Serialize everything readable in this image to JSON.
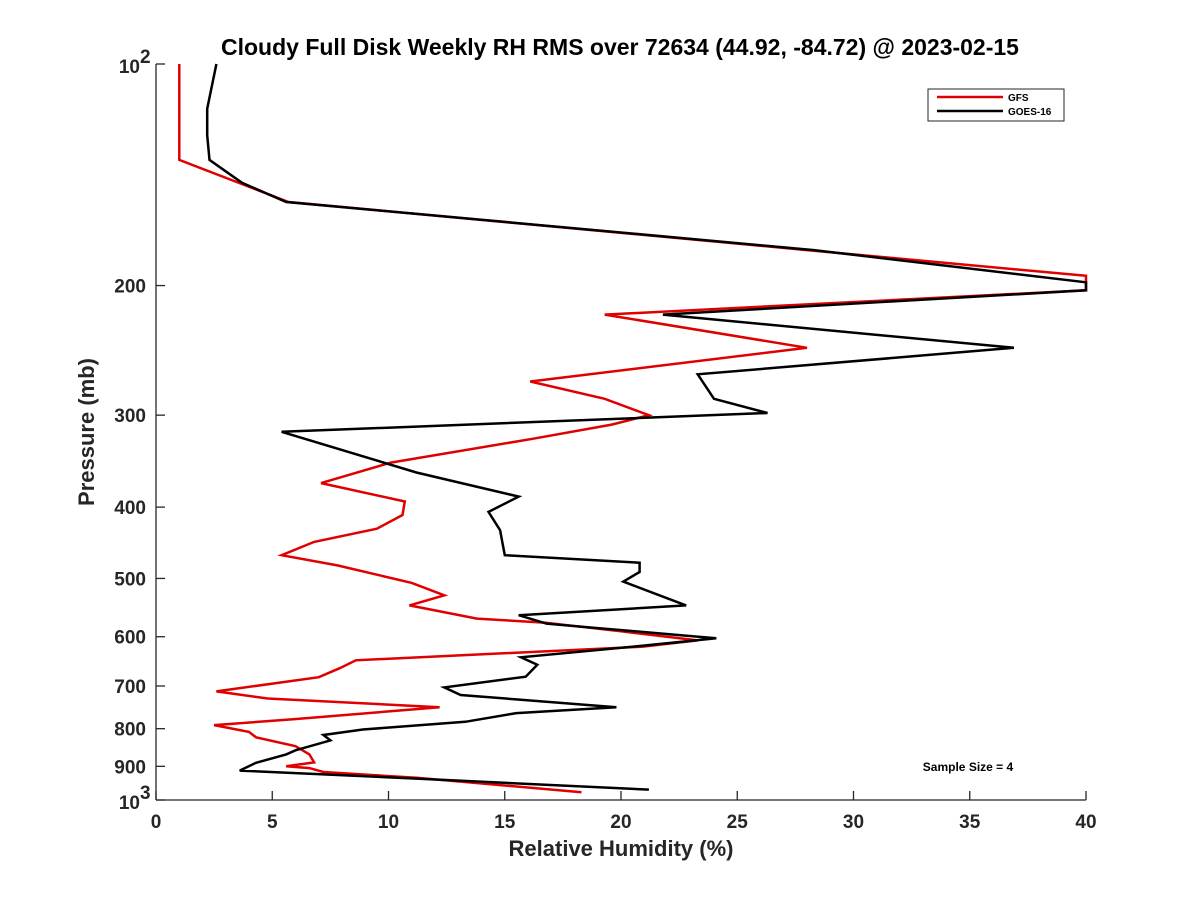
{
  "chart_data": {
    "type": "line",
    "title": "Cloudy Full Disk Weekly RH RMS over 72634 (44.92, -84.72) @ 2023-02-15",
    "xlabel": "Relative Humidity (%)",
    "ylabel": "Pressure (mb)",
    "xlim": [
      0,
      40
    ],
    "ylim": [
      100,
      1000
    ],
    "yscale": "log",
    "y_reversed": true,
    "grid": false,
    "legend_position": "top-right",
    "x_ticks": [
      "0",
      "5",
      "10",
      "15",
      "20",
      "25",
      "30",
      "35",
      "40"
    ],
    "y_ticks": [
      {
        "value": 100,
        "base": "10",
        "exp": "2"
      },
      {
        "value": 200,
        "label": "200"
      },
      {
        "value": 300,
        "label": "300"
      },
      {
        "value": 400,
        "label": "400"
      },
      {
        "value": 500,
        "label": "500"
      },
      {
        "value": 600,
        "label": "600"
      },
      {
        "value": 700,
        "label": "700"
      },
      {
        "value": 800,
        "label": "800"
      },
      {
        "value": 900,
        "label": "900"
      },
      {
        "value": 1000,
        "base": "10",
        "exp": "3"
      }
    ],
    "annotation": "Sample Size = 4",
    "series": [
      {
        "name": "GFS",
        "color": "#e00000",
        "points": [
          [
            1.0,
            100
          ],
          [
            1.0,
            115
          ],
          [
            1.0,
            125
          ],
          [
            1.0,
            135
          ],
          [
            5.7,
            154
          ],
          [
            28.0,
            179
          ],
          [
            40.0,
            194
          ],
          [
            40.0,
            203
          ],
          [
            19.3,
            219
          ],
          [
            28.0,
            243
          ],
          [
            16.1,
            270
          ],
          [
            19.3,
            285
          ],
          [
            21.2,
            300
          ],
          [
            19.6,
            309
          ],
          [
            16.2,
            323
          ],
          [
            10.1,
            348
          ],
          [
            7.1,
            371
          ],
          [
            10.7,
            393
          ],
          [
            10.6,
            410
          ],
          [
            9.5,
            428
          ],
          [
            6.8,
            446
          ],
          [
            5.4,
            465
          ],
          [
            7.8,
            480
          ],
          [
            11.0,
            507
          ],
          [
            12.4,
            527
          ],
          [
            10.9,
            544
          ],
          [
            13.8,
            567
          ],
          [
            16.7,
            574
          ],
          [
            20.0,
            590
          ],
          [
            23.3,
            607
          ],
          [
            20.9,
            619
          ],
          [
            8.6,
            646
          ],
          [
            7.9,
            662
          ],
          [
            7.0,
            681
          ],
          [
            2.6,
            712
          ],
          [
            4.8,
            728
          ],
          [
            12.2,
            748
          ],
          [
            5.9,
            777
          ],
          [
            2.5,
            791
          ],
          [
            4.0,
            808
          ],
          [
            4.3,
            822
          ],
          [
            6.0,
            845
          ],
          [
            6.6,
            867
          ],
          [
            6.8,
            889
          ],
          [
            5.6,
            900
          ],
          [
            6.6,
            905
          ],
          [
            7.2,
            916
          ],
          [
            11.2,
            933
          ],
          [
            18.3,
            976
          ]
        ]
      },
      {
        "name": "GOES-16",
        "color": "#000000",
        "points": [
          [
            2.6,
            100
          ],
          [
            2.2,
            115
          ],
          [
            2.2,
            125
          ],
          [
            2.3,
            135
          ],
          [
            3.7,
            145
          ],
          [
            5.6,
            154
          ],
          [
            28.3,
            179
          ],
          [
            40.0,
            198
          ],
          [
            40.0,
            203
          ],
          [
            21.8,
            219
          ],
          [
            36.9,
            243
          ],
          [
            23.3,
            264
          ],
          [
            24.0,
            285
          ],
          [
            26.3,
            298
          ],
          [
            5.4,
            316
          ],
          [
            11.2,
            359
          ],
          [
            15.6,
            387
          ],
          [
            14.3,
            406
          ],
          [
            14.8,
            430
          ],
          [
            14.9,
            447
          ],
          [
            15.0,
            465
          ],
          [
            20.8,
            476
          ],
          [
            20.8,
            490
          ],
          [
            20.1,
            505
          ],
          [
            22.8,
            544
          ],
          [
            15.6,
            561
          ],
          [
            16.8,
            576
          ],
          [
            24.1,
            603
          ],
          [
            20.7,
            618
          ],
          [
            15.7,
            640
          ],
          [
            16.4,
            655
          ],
          [
            15.9,
            680
          ],
          [
            12.4,
            703
          ],
          [
            13.1,
            720
          ],
          [
            19.8,
            748
          ],
          [
            15.5,
            762
          ],
          [
            13.3,
            783
          ],
          [
            8.9,
            802
          ],
          [
            7.2,
            816
          ],
          [
            7.5,
            830
          ],
          [
            6.0,
            856
          ],
          [
            5.6,
            867
          ],
          [
            4.3,
            890
          ],
          [
            3.6,
            912
          ],
          [
            11.1,
            935
          ],
          [
            21.2,
            968
          ]
        ]
      }
    ]
  }
}
